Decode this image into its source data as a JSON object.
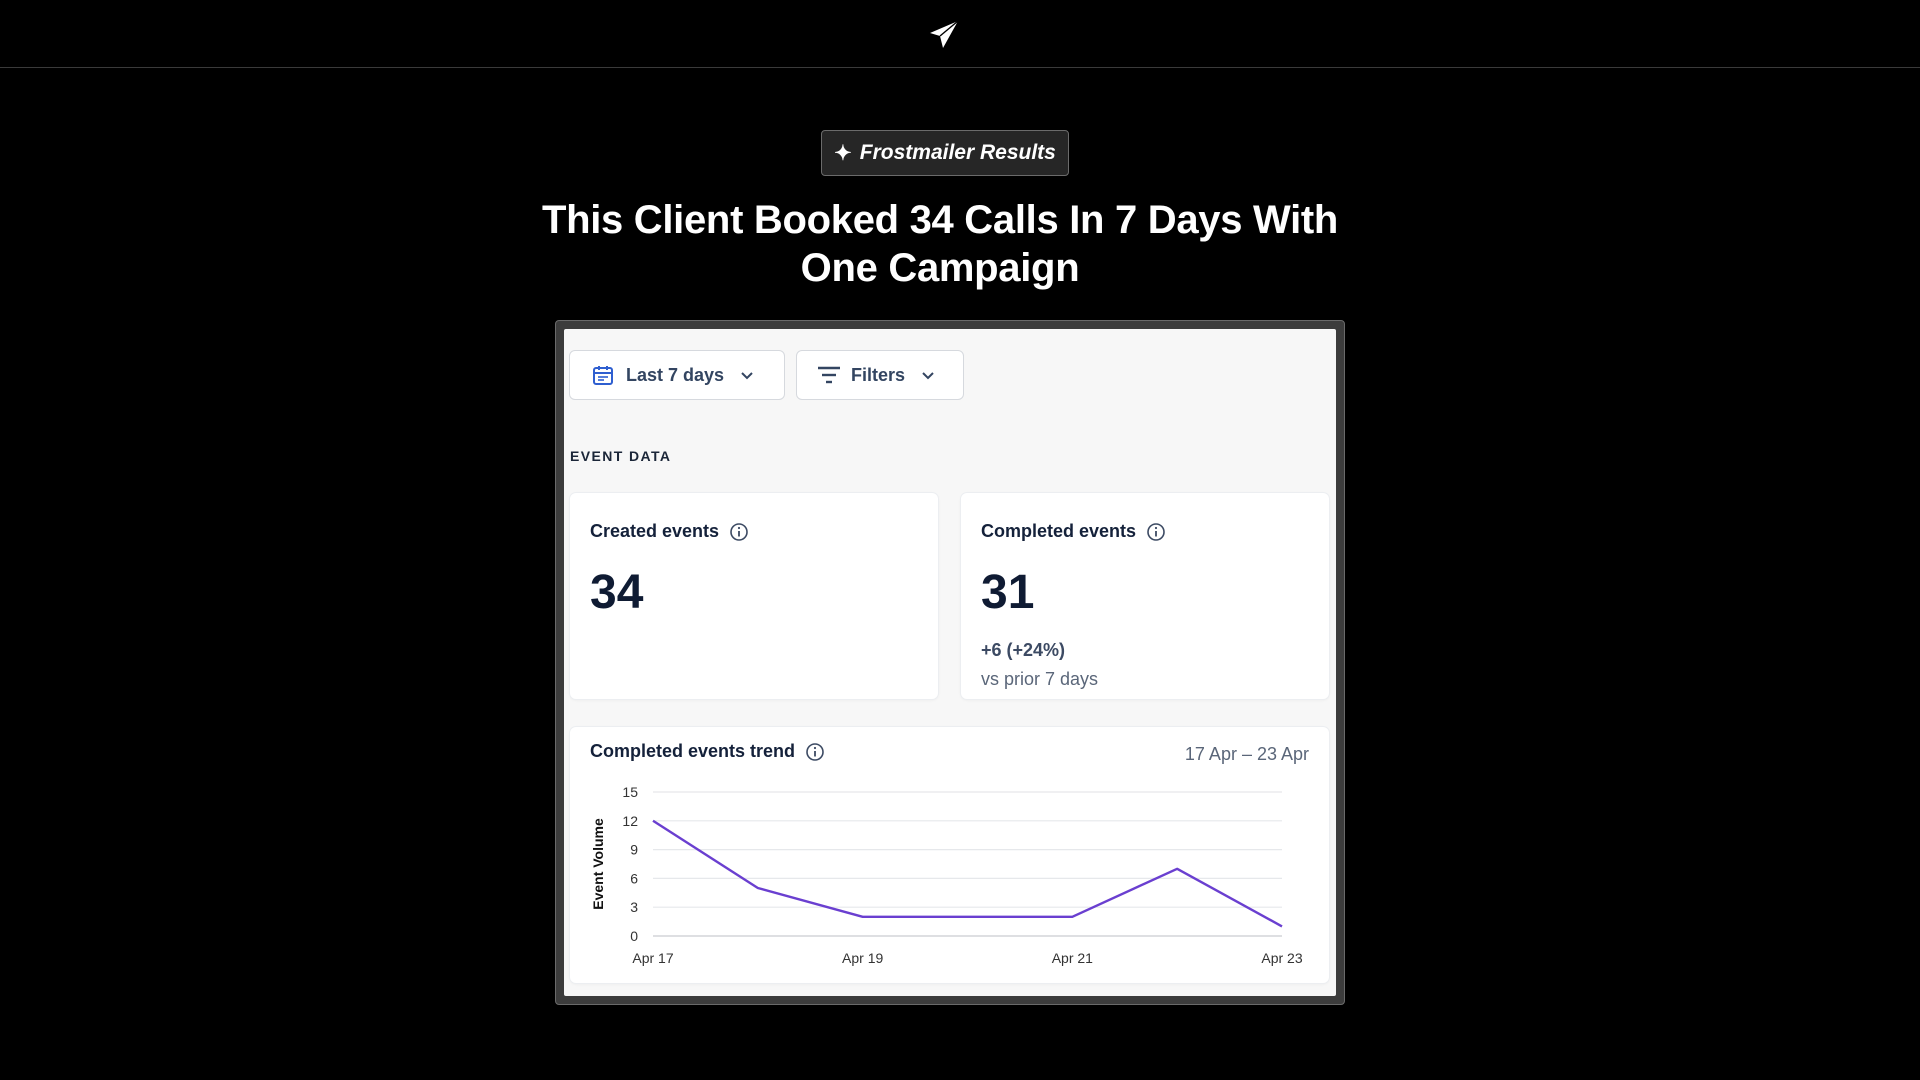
{
  "header": {
    "logo_icon": "paper-plane-icon"
  },
  "badge": {
    "icon": "sparkle-icon",
    "text": "Frostmailer Results"
  },
  "headline": {
    "line1": "This Client Booked 34 Calls In 7 Days With",
    "line2": "One Campaign"
  },
  "toolbar": {
    "date_range_label": "Last 7 days",
    "date_range_icon": "calendar-icon",
    "filters_label": "Filters",
    "filters_icon": "filter-icon",
    "chevron_icon": "chevron-down-icon"
  },
  "section": {
    "label": "EVENT DATA"
  },
  "created_card": {
    "title": "Created events",
    "value": "34",
    "info_icon": "info-icon"
  },
  "completed_card": {
    "title": "Completed events",
    "value": "31",
    "delta": "+6 (+24%)",
    "comparison": "vs prior 7 days",
    "info_icon": "info-icon"
  },
  "trend_card": {
    "title": "Completed events trend",
    "date_range": "17 Apr – 23 Apr",
    "info_icon": "info-icon"
  },
  "chart_data": {
    "type": "line",
    "title": "Completed events trend",
    "ylabel": "Event Volume",
    "xlabel": "",
    "x": [
      "Apr 17",
      "Apr 18",
      "Apr 19",
      "Apr 20",
      "Apr 21",
      "Apr 22",
      "Apr 23"
    ],
    "x_tick_labels": [
      "Apr 17",
      "Apr 19",
      "Apr 21",
      "Apr 23"
    ],
    "y_ticks": [
      0,
      3,
      6,
      9,
      12,
      15
    ],
    "ylim": [
      0,
      15
    ],
    "grid": true,
    "series": [
      {
        "values": [
          12,
          5,
          2,
          2,
          2,
          7,
          1
        ],
        "color": "#6a3fd0"
      }
    ]
  },
  "colors": {
    "background": "#000000",
    "badge_background": "#262626",
    "panel_background": "#f7f7f7",
    "text_dark": "#0f1b33",
    "line_series": "#6a3fd0"
  }
}
